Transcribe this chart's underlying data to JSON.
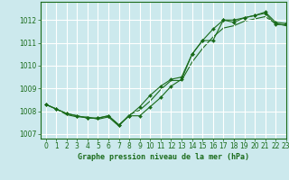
{
  "title": "Graphe pression niveau de la mer (hPa)",
  "background_color": "#cce9ed",
  "grid_color": "#ffffff",
  "line_color": "#1a6b1a",
  "marker_color": "#1a6b1a",
  "xlim": [
    -0.5,
    23
  ],
  "ylim": [
    1006.8,
    1012.8
  ],
  "xticks": [
    0,
    1,
    2,
    3,
    4,
    5,
    6,
    7,
    8,
    9,
    10,
    11,
    12,
    13,
    14,
    15,
    16,
    17,
    18,
    19,
    20,
    21,
    22,
    23
  ],
  "yticks": [
    1007,
    1008,
    1009,
    1010,
    1011,
    1012
  ],
  "series1_x": [
    0,
    1,
    2,
    3,
    4,
    5,
    6,
    7,
    8,
    9,
    10,
    11,
    12,
    13,
    14,
    15,
    16,
    17,
    18,
    19,
    20,
    21,
    22,
    23
  ],
  "series1_y": [
    1008.3,
    1008.1,
    1007.9,
    1007.8,
    1007.7,
    1007.7,
    1007.8,
    1007.4,
    1007.8,
    1007.8,
    1008.2,
    1008.6,
    1009.1,
    1009.4,
    1010.5,
    1011.1,
    1011.1,
    1012.0,
    1012.0,
    1012.1,
    1012.2,
    1012.35,
    1011.9,
    1011.85
  ],
  "series2_x": [
    0,
    1,
    2,
    3,
    4,
    5,
    6,
    7,
    8,
    9,
    10,
    11,
    12,
    13,
    14,
    15,
    16,
    17,
    18,
    19,
    20,
    21,
    22,
    23
  ],
  "series2_y": [
    1008.3,
    1008.1,
    1007.9,
    1007.8,
    1007.7,
    1007.7,
    1007.8,
    1007.4,
    1007.8,
    1008.2,
    1008.7,
    1009.1,
    1009.4,
    1009.5,
    1010.5,
    1011.1,
    1011.6,
    1012.0,
    1011.9,
    1012.1,
    1012.2,
    1012.3,
    1011.8,
    1011.8
  ],
  "series3_x": [
    0,
    1,
    2,
    3,
    4,
    5,
    6,
    7,
    8,
    9,
    10,
    11,
    12,
    13,
    14,
    15,
    16,
    17,
    18,
    19,
    20,
    21,
    22,
    23
  ],
  "series3_y": [
    1008.3,
    1008.1,
    1007.85,
    1007.75,
    1007.75,
    1007.65,
    1007.75,
    1007.35,
    1007.85,
    1008.05,
    1008.45,
    1008.95,
    1009.35,
    1009.35,
    1010.15,
    1010.75,
    1011.25,
    1011.65,
    1011.75,
    1011.95,
    1012.05,
    1012.15,
    1011.85,
    1011.75
  ],
  "xlabel_fontsize": 6,
  "tick_fontsize": 5.5
}
